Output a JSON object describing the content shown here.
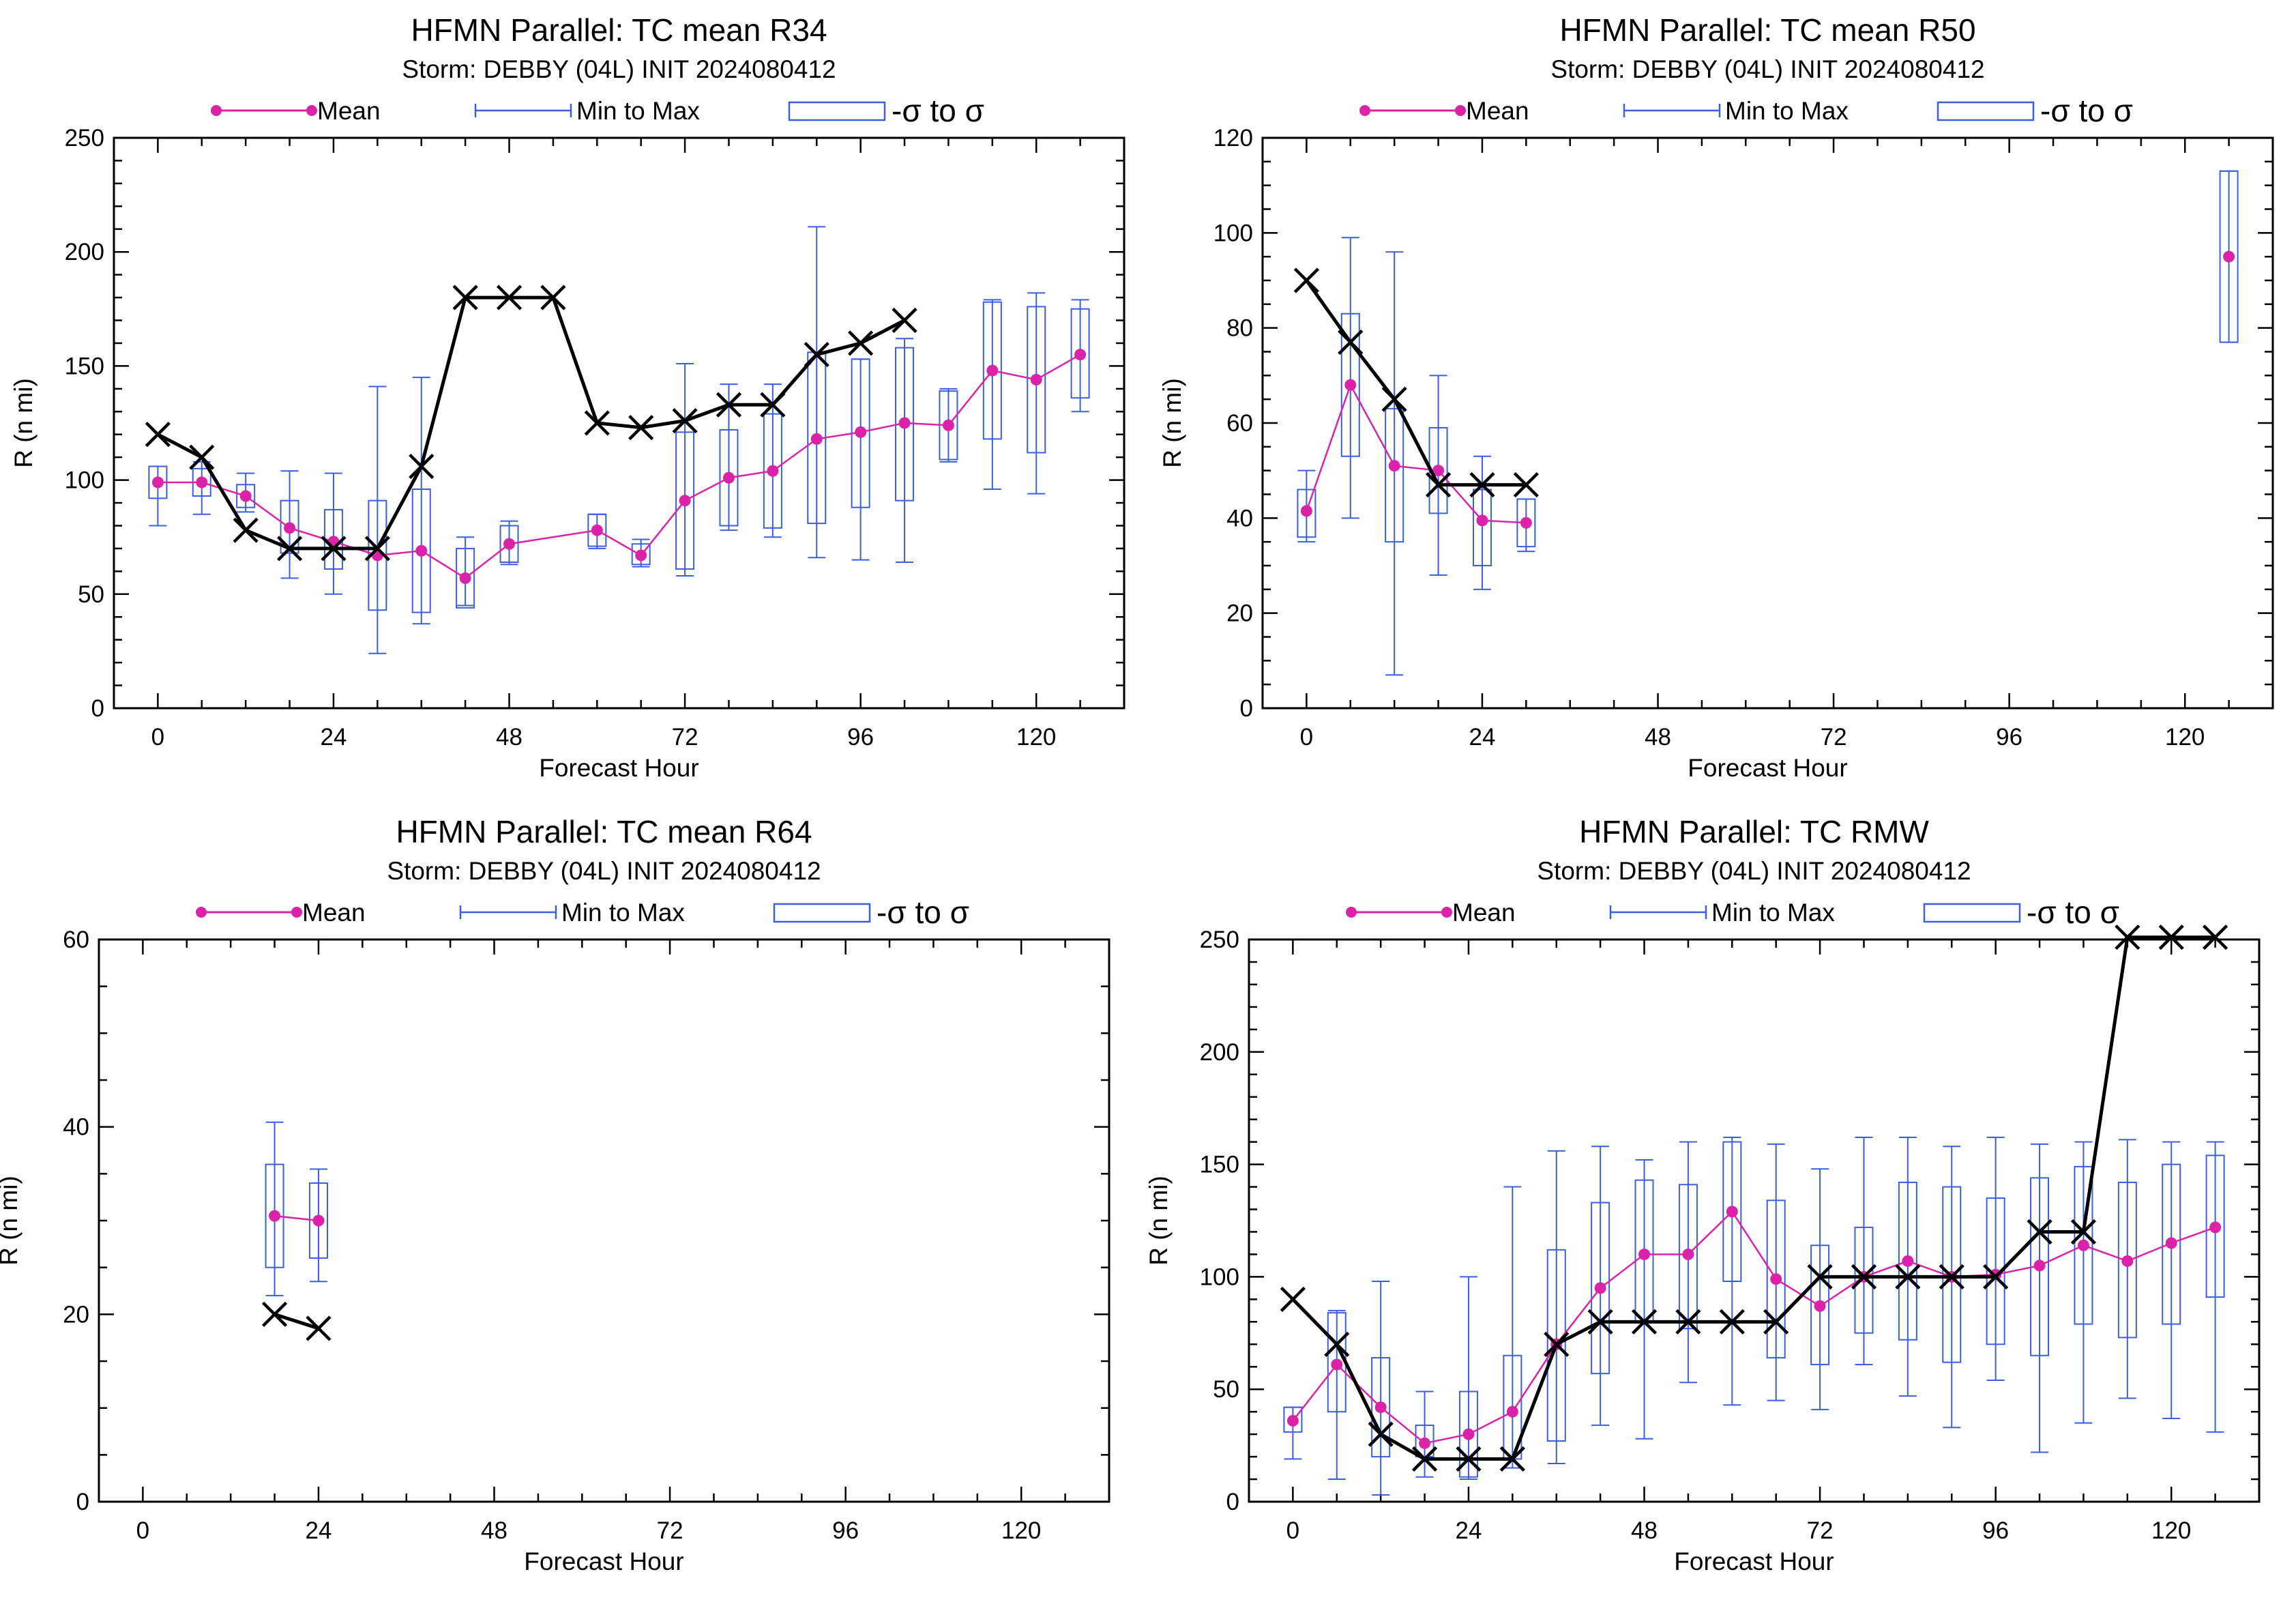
{
  "colors": {
    "mean": "#dd22aa",
    "spread": "#3a5fe5",
    "official": "#000000",
    "axis": "#000000"
  },
  "legend": {
    "mean": "Mean",
    "minmax": "Min to Max",
    "sigma": "-σ to σ"
  },
  "chart_data": [
    {
      "type": "box",
      "title": "HFMN Parallel: TC mean R34",
      "subtitle": "Storm: DEBBY (04L) INIT 2024080412",
      "xlabel": "Forecast Hour",
      "ylabel": "R (n mi)",
      "xlim": [
        -6,
        132
      ],
      "ylim": [
        0,
        250
      ],
      "xticks": [
        0,
        24,
        48,
        72,
        96,
        120
      ],
      "yticks": [
        0,
        50,
        100,
        150,
        200,
        250
      ],
      "grid": false,
      "legend_position": "top",
      "mean_series": [
        [
          0,
          99
        ],
        [
          6,
          99
        ],
        [
          12,
          93
        ],
        [
          18,
          79
        ],
        [
          24,
          73
        ],
        [
          30,
          67
        ],
        [
          36,
          69
        ],
        [
          42,
          57
        ],
        [
          48,
          72
        ],
        [
          60,
          78
        ],
        [
          66,
          67
        ],
        [
          72,
          91
        ],
        [
          78,
          101
        ],
        [
          84,
          104
        ],
        [
          90,
          118
        ],
        [
          96,
          121
        ],
        [
          102,
          125
        ],
        [
          108,
          124
        ],
        [
          114,
          148
        ],
        [
          120,
          144
        ],
        [
          126,
          155
        ]
      ],
      "minmax": [
        [
          0,
          80,
          106
        ],
        [
          6,
          85,
          108
        ],
        [
          12,
          86,
          103
        ],
        [
          18,
          57,
          104
        ],
        [
          24,
          50,
          103
        ],
        [
          30,
          24,
          141
        ],
        [
          36,
          37,
          145
        ],
        [
          42,
          45,
          75
        ],
        [
          48,
          63,
          82
        ],
        [
          60,
          70,
          85
        ],
        [
          66,
          62,
          74
        ],
        [
          72,
          58,
          151
        ],
        [
          78,
          78,
          142
        ],
        [
          84,
          75,
          142
        ],
        [
          90,
          66,
          211
        ],
        [
          96,
          65,
          153
        ],
        [
          102,
          64,
          162
        ],
        [
          108,
          108,
          140
        ],
        [
          114,
          96,
          179
        ],
        [
          120,
          94,
          182
        ],
        [
          126,
          130,
          179
        ]
      ],
      "sigma": [
        [
          0,
          92,
          106
        ],
        [
          6,
          93,
          105
        ],
        [
          12,
          88,
          98
        ],
        [
          18,
          68,
          91
        ],
        [
          24,
          61,
          87
        ],
        [
          30,
          43,
          91
        ],
        [
          36,
          42,
          96
        ],
        [
          42,
          44,
          70
        ],
        [
          48,
          64,
          80
        ],
        [
          60,
          71,
          85
        ],
        [
          66,
          63,
          72
        ],
        [
          72,
          61,
          121
        ],
        [
          78,
          80,
          122
        ],
        [
          84,
          79,
          129
        ],
        [
          90,
          81,
          156
        ],
        [
          96,
          88,
          153
        ],
        [
          102,
          91,
          158
        ],
        [
          108,
          109,
          139
        ],
        [
          114,
          118,
          178
        ],
        [
          120,
          112,
          176
        ],
        [
          126,
          136,
          175
        ]
      ],
      "official": [
        [
          0,
          120
        ],
        [
          6,
          110
        ],
        [
          12,
          78
        ],
        [
          18,
          70
        ],
        [
          24,
          70
        ],
        [
          30,
          70
        ],
        [
          36,
          106
        ],
        [
          42,
          180
        ],
        [
          48,
          180
        ],
        [
          54,
          180
        ],
        [
          60,
          125
        ],
        [
          66,
          123
        ],
        [
          72,
          126
        ],
        [
          78,
          133
        ],
        [
          84,
          133
        ],
        [
          90,
          155
        ],
        [
          96,
          160
        ],
        [
          102,
          170
        ]
      ]
    },
    {
      "type": "box",
      "title": "HFMN Parallel: TC mean R50",
      "subtitle": "Storm: DEBBY (04L) INIT 2024080412",
      "xlabel": "Forecast Hour",
      "ylabel": "R (n mi)",
      "xlim": [
        -6,
        132
      ],
      "ylim": [
        0,
        120
      ],
      "xticks": [
        0,
        24,
        48,
        72,
        96,
        120
      ],
      "yticks": [
        0,
        20,
        40,
        60,
        80,
        100,
        120
      ],
      "grid": false,
      "legend_position": "top",
      "mean_series": [
        [
          0,
          41.5
        ],
        [
          6,
          68
        ],
        [
          12,
          51
        ],
        [
          18,
          50
        ],
        [
          24,
          39.5
        ],
        [
          30,
          39
        ]
      ],
      "minmax": [
        [
          0,
          35,
          50
        ],
        [
          6,
          40,
          99
        ],
        [
          12,
          7,
          96
        ],
        [
          18,
          28,
          70
        ],
        [
          24,
          25,
          53
        ],
        [
          30,
          33,
          44
        ],
        [
          126,
          77,
          113
        ]
      ],
      "sigma": [
        [
          0,
          36,
          46
        ],
        [
          6,
          53,
          83
        ],
        [
          12,
          35,
          63
        ],
        [
          18,
          41,
          59
        ],
        [
          24,
          30,
          46
        ],
        [
          30,
          34,
          44
        ],
        [
          126,
          77,
          113
        ]
      ],
      "official": [
        [
          0,
          90
        ],
        [
          6,
          77
        ],
        [
          12,
          65
        ],
        [
          18,
          47
        ],
        [
          24,
          47
        ],
        [
          30,
          47
        ]
      ],
      "extra_mean": [
        [
          126,
          95
        ]
      ]
    },
    {
      "type": "box",
      "title": "HFMN Parallel: TC mean R64",
      "subtitle": "Storm: DEBBY (04L) INIT 2024080412",
      "xlabel": "Forecast Hour",
      "ylabel": "R (n mi)",
      "xlim": [
        -6,
        132
      ],
      "ylim": [
        0,
        60
      ],
      "xticks": [
        0,
        24,
        48,
        72,
        96,
        120
      ],
      "yticks": [
        0,
        20,
        40,
        60
      ],
      "grid": false,
      "legend_position": "top",
      "mean_series": [
        [
          18,
          30.5
        ],
        [
          24,
          30
        ]
      ],
      "minmax": [
        [
          18,
          22,
          40.5
        ],
        [
          24,
          23.5,
          35.5
        ]
      ],
      "sigma": [
        [
          18,
          25,
          36
        ],
        [
          24,
          26,
          34
        ]
      ],
      "official": [
        [
          18,
          20
        ],
        [
          24,
          18.5
        ]
      ]
    },
    {
      "type": "box",
      "title": "HFMN Parallel: TC RMW",
      "subtitle": "Storm: DEBBY (04L) INIT 2024080412",
      "xlabel": "Forecast Hour",
      "ylabel": "R (n mi)",
      "xlim": [
        -6,
        132
      ],
      "ylim": [
        0,
        250
      ],
      "xticks": [
        0,
        24,
        48,
        72,
        96,
        120
      ],
      "yticks": [
        0,
        50,
        100,
        150,
        200,
        250
      ],
      "grid": false,
      "legend_position": "top",
      "mean_series": [
        [
          0,
          36
        ],
        [
          6,
          61
        ],
        [
          12,
          42
        ],
        [
          18,
          26
        ],
        [
          24,
          30
        ],
        [
          30,
          40
        ],
        [
          36,
          70
        ],
        [
          42,
          95
        ],
        [
          48,
          110
        ],
        [
          54,
          110
        ],
        [
          60,
          129
        ],
        [
          66,
          99
        ],
        [
          72,
          87
        ],
        [
          78,
          100
        ],
        [
          84,
          107
        ],
        [
          90,
          100
        ],
        [
          96,
          101
        ],
        [
          102,
          105
        ],
        [
          108,
          114
        ],
        [
          114,
          107
        ],
        [
          120,
          115
        ],
        [
          126,
          122
        ]
      ],
      "minmax": [
        [
          0,
          19,
          42
        ],
        [
          6,
          10,
          85
        ],
        [
          12,
          3,
          98
        ],
        [
          18,
          11,
          49
        ],
        [
          24,
          10,
          100
        ],
        [
          30,
          15,
          140
        ],
        [
          36,
          17,
          156
        ],
        [
          42,
          34,
          158
        ],
        [
          48,
          28,
          152
        ],
        [
          54,
          53,
          160
        ],
        [
          60,
          43,
          162
        ],
        [
          66,
          45,
          159
        ],
        [
          72,
          41,
          148
        ],
        [
          78,
          61,
          162
        ],
        [
          84,
          47,
          162
        ],
        [
          90,
          33,
          158
        ],
        [
          96,
          54,
          162
        ],
        [
          102,
          22,
          159
        ],
        [
          108,
          35,
          160
        ],
        [
          114,
          46,
          161
        ],
        [
          120,
          37,
          160
        ],
        [
          126,
          31,
          160
        ]
      ],
      "sigma": [
        [
          0,
          31,
          42
        ],
        [
          6,
          40,
          84
        ],
        [
          12,
          20,
          64
        ],
        [
          18,
          20,
          34
        ],
        [
          24,
          11,
          49
        ],
        [
          30,
          19,
          65
        ],
        [
          36,
          27,
          112
        ],
        [
          42,
          57,
          133
        ],
        [
          48,
          80,
          143
        ],
        [
          54,
          77,
          141
        ],
        [
          60,
          98,
          160
        ],
        [
          66,
          64,
          134
        ],
        [
          72,
          61,
          114
        ],
        [
          78,
          75,
          122
        ],
        [
          84,
          72,
          142
        ],
        [
          90,
          62,
          140
        ],
        [
          96,
          70,
          135
        ],
        [
          102,
          65,
          144
        ],
        [
          108,
          79,
          149
        ],
        [
          114,
          73,
          142
        ],
        [
          120,
          79,
          150
        ],
        [
          126,
          91,
          154
        ]
      ],
      "official": [
        [
          0,
          90
        ],
        [
          6,
          70
        ],
        [
          12,
          30
        ],
        [
          18,
          19
        ],
        [
          24,
          19
        ],
        [
          30,
          19
        ],
        [
          36,
          70
        ],
        [
          42,
          80
        ],
        [
          48,
          80
        ],
        [
          54,
          80
        ],
        [
          60,
          80
        ],
        [
          66,
          80
        ],
        [
          72,
          100
        ],
        [
          78,
          100
        ],
        [
          84,
          100
        ],
        [
          90,
          100
        ],
        [
          96,
          100
        ],
        [
          102,
          120
        ],
        [
          108,
          120
        ],
        [
          114,
          251
        ],
        [
          120,
          251
        ],
        [
          126,
          251
        ]
      ]
    }
  ]
}
